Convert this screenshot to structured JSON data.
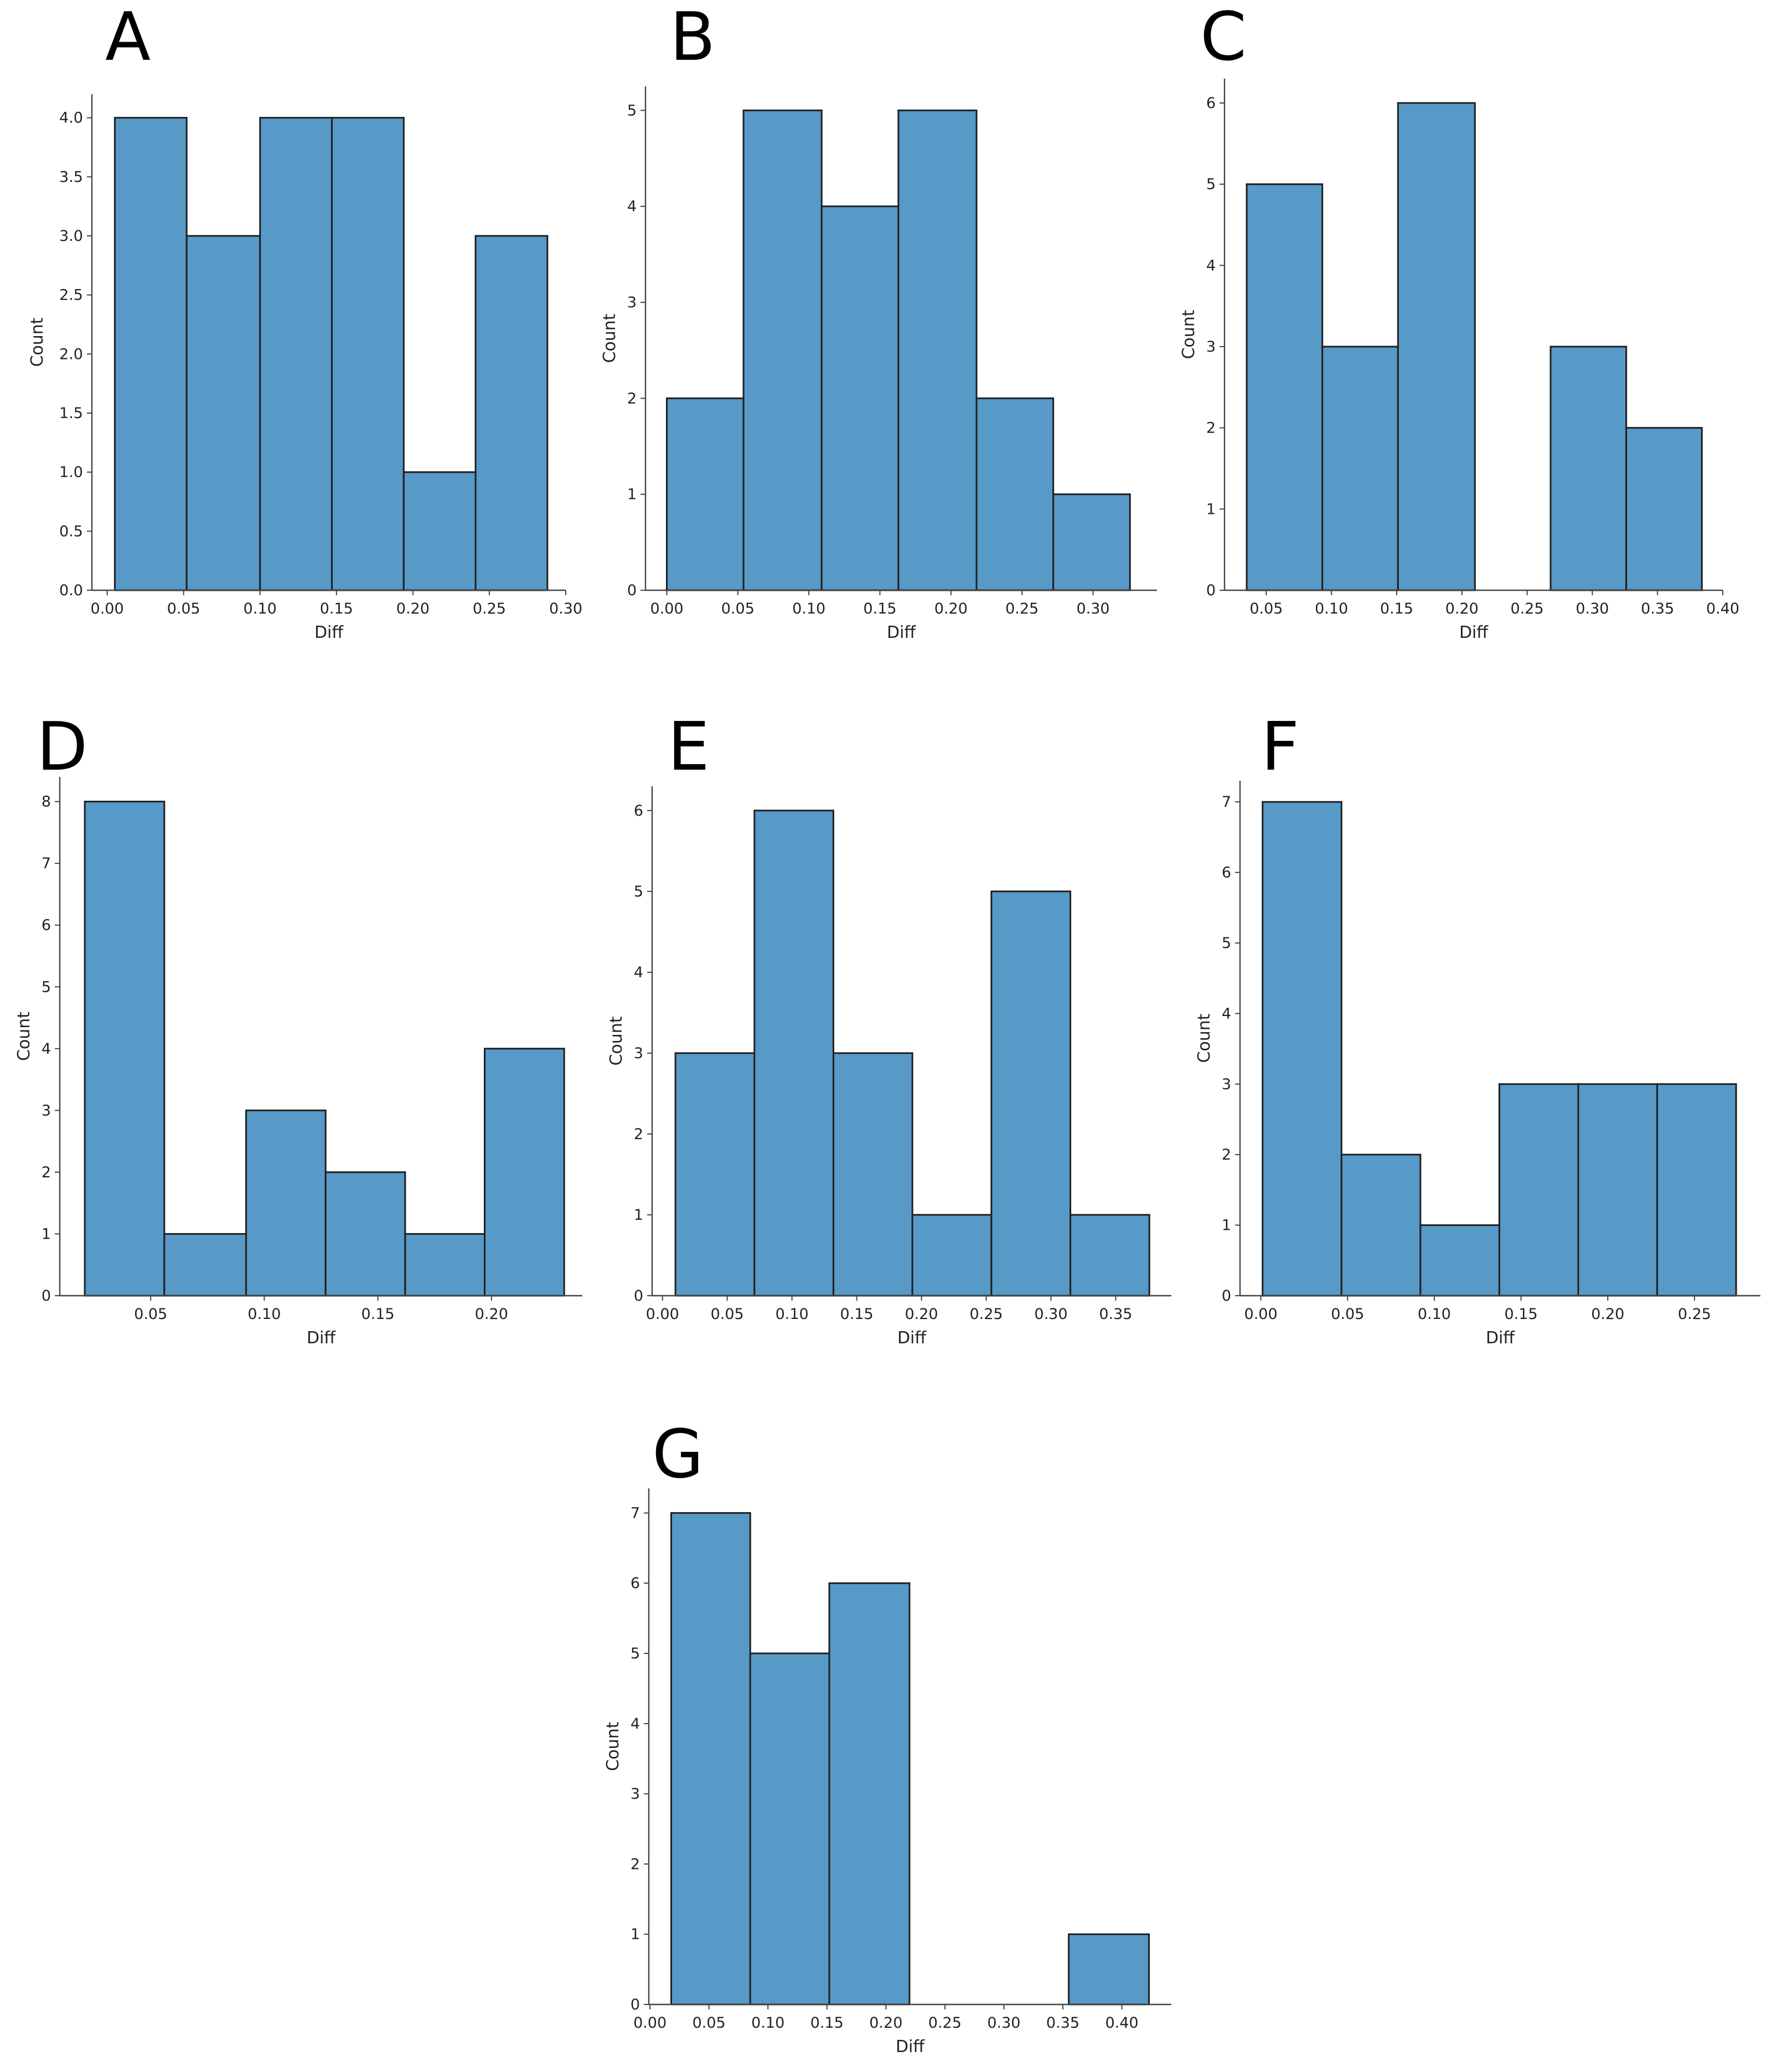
{
  "figure": {
    "bar_color": "#5799c7",
    "edge_color": "#1f1f1f"
  },
  "chart_data": [
    {
      "panel": "A",
      "type": "bar",
      "title": "",
      "xlabel": "Diff",
      "ylabel": "Count",
      "bin_edges": [
        0.005,
        0.052,
        0.1,
        0.147,
        0.194,
        0.241,
        0.288
      ],
      "values": [
        4,
        3,
        4,
        4,
        1,
        3
      ],
      "xlim": [
        -0.01,
        0.3
      ],
      "ylim": [
        0,
        4.2
      ],
      "xticks": [
        0.0,
        0.05,
        0.1,
        0.15,
        0.2,
        0.25,
        0.3
      ],
      "xtick_labels": [
        "0.00",
        "0.05",
        "0.10",
        "0.15",
        "0.20",
        "0.25",
        "0.30"
      ],
      "yticks": [
        0,
        0.5,
        1,
        1.5,
        2,
        2.5,
        3,
        3.5,
        4
      ],
      "ytick_labels": [
        "0.0",
        "0.5",
        "1.0",
        "1.5",
        "2.0",
        "2.5",
        "3.0",
        "3.5",
        "4.0"
      ]
    },
    {
      "panel": "B",
      "type": "bar",
      "title": "",
      "xlabel": "Diff",
      "ylabel": "Count",
      "bin_edges": [
        0.0,
        0.054,
        0.109,
        0.163,
        0.218,
        0.272,
        0.326
      ],
      "values": [
        2,
        5,
        4,
        5,
        2,
        1
      ],
      "xlim": [
        -0.015,
        0.345
      ],
      "ylim": [
        0,
        5.25
      ],
      "xticks": [
        0.0,
        0.05,
        0.1,
        0.15,
        0.2,
        0.25,
        0.3
      ],
      "xtick_labels": [
        "0.00",
        "0.05",
        "0.10",
        "0.15",
        "0.20",
        "0.25",
        "0.30"
      ],
      "yticks": [
        0,
        1,
        2,
        3,
        4,
        5
      ],
      "ytick_labels": [
        "0",
        "1",
        "2",
        "3",
        "4",
        "5"
      ]
    },
    {
      "panel": "C",
      "type": "bar",
      "title": "",
      "xlabel": "Diff",
      "ylabel": "Count",
      "bin_edges": [
        0.035,
        0.093,
        0.151,
        0.21,
        0.268,
        0.326,
        0.384
      ],
      "values": [
        5,
        3,
        6,
        0,
        3,
        2
      ],
      "xlim": [
        0.018,
        0.4
      ],
      "ylim": [
        0,
        6.3
      ],
      "xticks": [
        0.05,
        0.1,
        0.15,
        0.2,
        0.25,
        0.3,
        0.35,
        0.4
      ],
      "xtick_labels": [
        "0.05",
        "0.10",
        "0.15",
        "0.20",
        "0.25",
        "0.30",
        "0.35",
        "0.40"
      ],
      "yticks": [
        0,
        1,
        2,
        3,
        4,
        5,
        6
      ],
      "ytick_labels": [
        "0",
        "1",
        "2",
        "3",
        "4",
        "5",
        "6"
      ]
    },
    {
      "panel": "D",
      "type": "bar",
      "title": "",
      "xlabel": "Diff",
      "ylabel": "Count",
      "bin_edges": [
        0.021,
        0.056,
        0.092,
        0.127,
        0.162,
        0.197,
        0.232
      ],
      "values": [
        8,
        1,
        3,
        2,
        1,
        4
      ],
      "xlim": [
        0.01,
        0.24
      ],
      "ylim": [
        0,
        8.4
      ],
      "xticks": [
        0.05,
        0.1,
        0.15,
        0.2
      ],
      "xtick_labels": [
        "0.05",
        "0.10",
        "0.15",
        "0.20"
      ],
      "yticks": [
        0,
        1,
        2,
        3,
        4,
        5,
        6,
        7,
        8
      ],
      "ytick_labels": [
        "0",
        "1",
        "2",
        "3",
        "4",
        "5",
        "6",
        "7",
        "8"
      ]
    },
    {
      "panel": "E",
      "type": "bar",
      "title": "",
      "xlabel": "Diff",
      "ylabel": "Count",
      "bin_edges": [
        0.01,
        0.071,
        0.132,
        0.193,
        0.254,
        0.315,
        0.376
      ],
      "values": [
        3,
        6,
        3,
        1,
        5,
        1
      ],
      "xlim": [
        -0.008,
        0.393
      ],
      "ylim": [
        0,
        6.3
      ],
      "xticks": [
        0.0,
        0.05,
        0.1,
        0.15,
        0.2,
        0.25,
        0.3,
        0.35
      ],
      "xtick_labels": [
        "0.00",
        "0.05",
        "0.10",
        "0.15",
        "0.20",
        "0.25",
        "0.30",
        "0.35"
      ],
      "yticks": [
        0,
        1,
        2,
        3,
        4,
        5,
        6
      ],
      "ytick_labels": [
        "0",
        "1",
        "2",
        "3",
        "4",
        "5",
        "6"
      ]
    },
    {
      "panel": "F",
      "type": "bar",
      "title": "",
      "xlabel": "Diff",
      "ylabel": "Count",
      "bin_edges": [
        0.001,
        0.0465,
        0.092,
        0.1375,
        0.183,
        0.2285,
        0.274
      ],
      "values": [
        7,
        2,
        1,
        3,
        3,
        3
      ],
      "xlim": [
        -0.012,
        0.288
      ],
      "ylim": [
        0,
        7.3
      ],
      "xticks": [
        0.0,
        0.05,
        0.1,
        0.15,
        0.2,
        0.25
      ],
      "xtick_labels": [
        "0.00",
        "0.05",
        "0.10",
        "0.15",
        "0.20",
        "0.25"
      ],
      "yticks": [
        0,
        1,
        2,
        3,
        4,
        5,
        6,
        7
      ],
      "ytick_labels": [
        "0",
        "1",
        "2",
        "3",
        "4",
        "5",
        "6",
        "7"
      ]
    },
    {
      "panel": "G",
      "type": "bar",
      "title": "",
      "xlabel": "Diff",
      "ylabel": "Count",
      "bin_edges": [
        0.018,
        0.085,
        0.152,
        0.22,
        0.287,
        0.355,
        0.423
      ],
      "values": [
        7,
        5,
        6,
        0,
        0,
        1
      ],
      "xlim": [
        -0.001,
        0.442
      ],
      "ylim": [
        0,
        7.35
      ],
      "xticks": [
        0.0,
        0.05,
        0.1,
        0.15,
        0.2,
        0.25,
        0.3,
        0.35,
        0.4
      ],
      "xtick_labels": [
        "0.00",
        "0.05",
        "0.10",
        "0.15",
        "0.20",
        "0.25",
        "0.30",
        "0.35",
        "0.40"
      ],
      "yticks": [
        0,
        1,
        2,
        3,
        4,
        5,
        6,
        7
      ],
      "ytick_labels": [
        "0",
        "1",
        "2",
        "3",
        "4",
        "5",
        "6",
        "7"
      ]
    }
  ]
}
